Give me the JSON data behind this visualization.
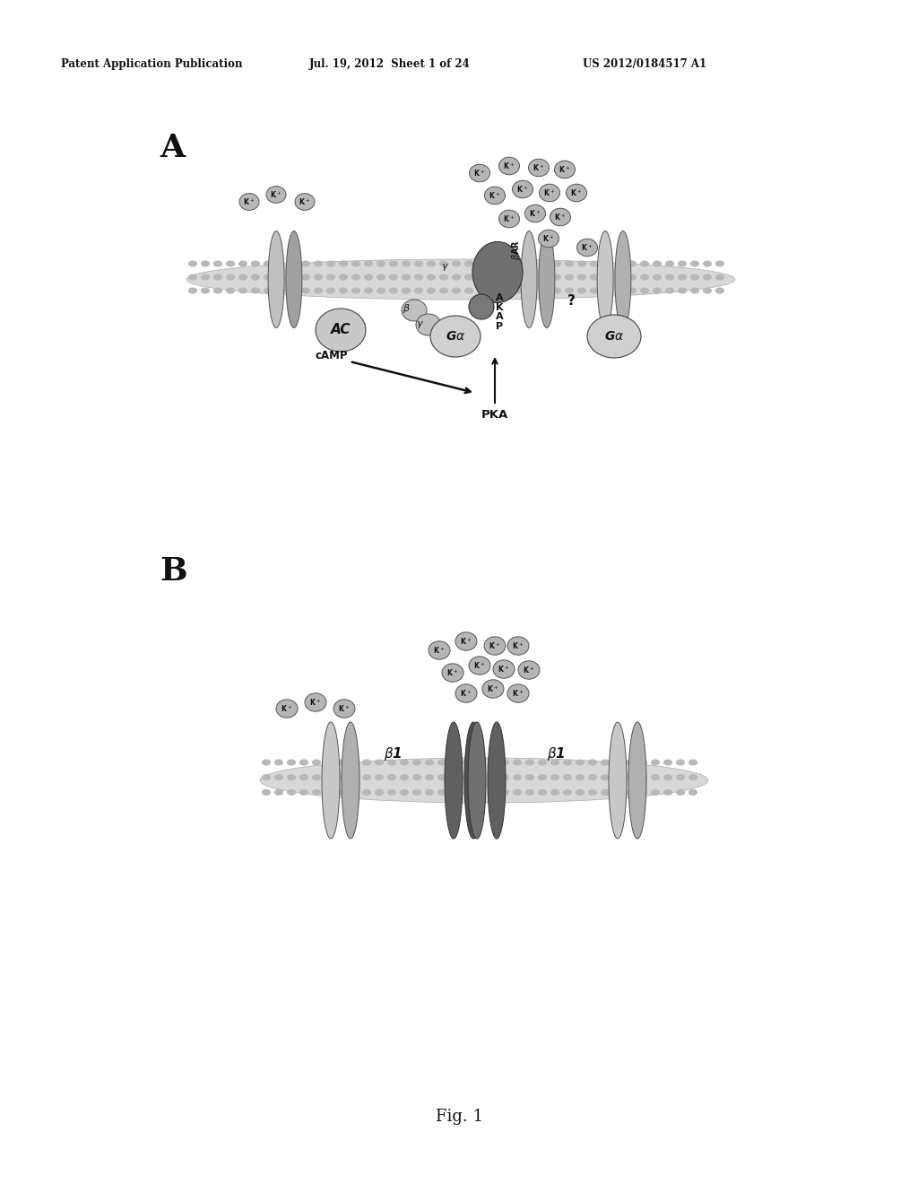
{
  "bg_color": "#ffffff",
  "header_left": "Patent Application Publication",
  "header_mid": "Jul. 19, 2012  Sheet 1 of 24",
  "header_right": "US 2012/0184517 A1",
  "footer": "Fig. 1",
  "panel_A_label": "A",
  "panel_B_label": "B"
}
